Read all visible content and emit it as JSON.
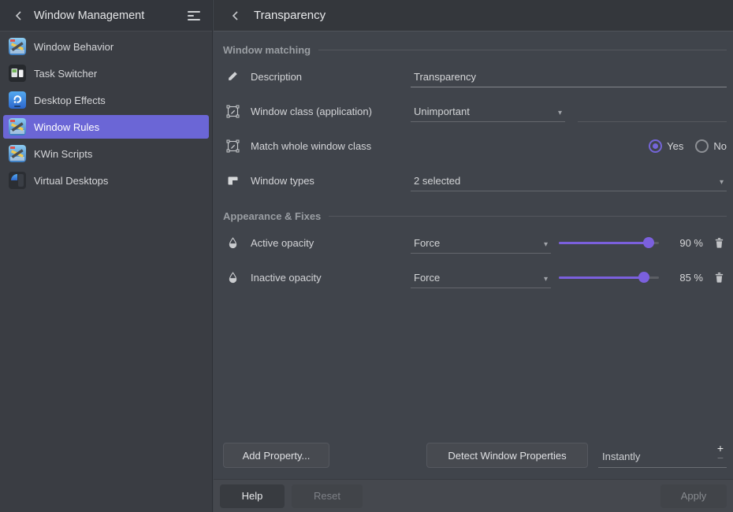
{
  "accent_color": "#6b66d6",
  "slider_color": "#7b60dd",
  "sidebar": {
    "title": "Window Management",
    "back_icon": "chevron-left-icon",
    "menu_icon": "overflow-menu-icon",
    "items": [
      {
        "label": "Window Behavior",
        "icon": "window-behavior-icon",
        "selected": false
      },
      {
        "label": "Task Switcher",
        "icon": "task-switcher-icon",
        "selected": false
      },
      {
        "label": "Desktop Effects",
        "icon": "desktop-effects-icon",
        "selected": false
      },
      {
        "label": "Window Rules",
        "icon": "window-rules-icon",
        "selected": true
      },
      {
        "label": "KWin Scripts",
        "icon": "kwin-scripts-icon",
        "selected": false
      },
      {
        "label": "Virtual Desktops",
        "icon": "virtual-desktops-icon",
        "selected": false
      }
    ]
  },
  "header": {
    "back_icon": "chevron-left-icon",
    "title": "Transparency"
  },
  "sections": {
    "matching": {
      "title": "Window matching"
    },
    "appearance": {
      "title": "Appearance & Fixes"
    }
  },
  "rows": {
    "description": {
      "icon": "pencil-icon",
      "label": "Description",
      "value": "Transparency"
    },
    "window_class": {
      "icon": "frame-edit-icon",
      "label": "Window class (application)",
      "mode": "Unimportant",
      "value": ""
    },
    "match_whole": {
      "icon": "frame-edit-icon",
      "label": "Match whole window class",
      "yes_label": "Yes",
      "no_label": "No",
      "selected": "Yes"
    },
    "window_types": {
      "icon": "window-types-icon",
      "label": "Window types",
      "value": "2 selected"
    },
    "active_opacity": {
      "icon": "droplet-icon",
      "label": "Active opacity",
      "mode": "Force",
      "percent": 90,
      "display": "90 %",
      "delete_icon": "trash-icon"
    },
    "inactive_opacity": {
      "icon": "droplet-icon",
      "label": "Inactive opacity",
      "mode": "Force",
      "percent": 85,
      "display": "85 %",
      "delete_icon": "trash-icon"
    }
  },
  "actions": {
    "add_property": "Add Property...",
    "detect": "Detect Window Properties",
    "shortcut_value": "Instantly",
    "spin_plus": "+",
    "spin_minus": "−"
  },
  "footer": {
    "help": "Help",
    "reset": "Reset",
    "apply": "Apply"
  }
}
